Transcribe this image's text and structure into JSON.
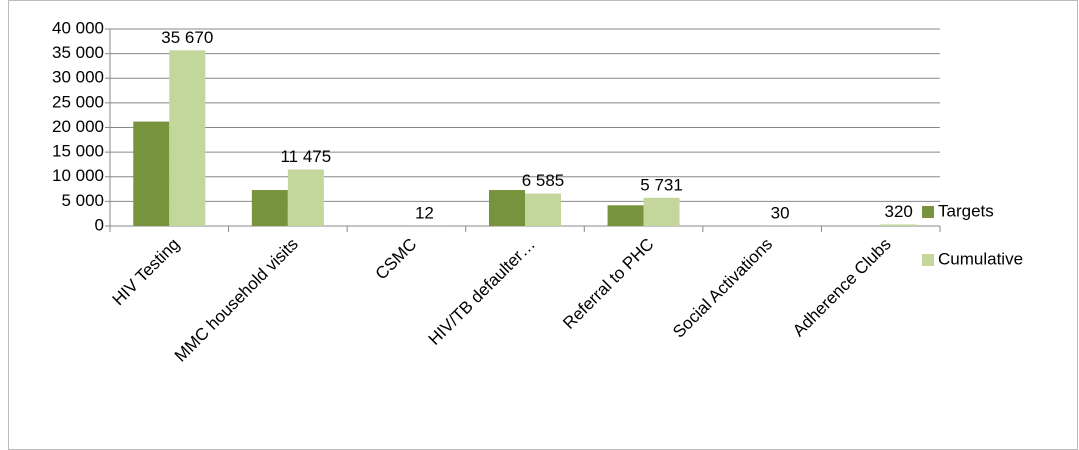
{
  "chart_data": {
    "type": "bar",
    "categories": [
      "HIV Testing",
      "MMC household visits",
      "CSMC",
      "HIV/TB defaulter…",
      "Referral to PHC",
      "Social Activations",
      "Adherence Clubs"
    ],
    "series": [
      {
        "name": "Targets",
        "color": "#77933c",
        "values": [
          21200,
          7300,
          0,
          7300,
          4200,
          0,
          0
        ]
      },
      {
        "name": "Cumulative",
        "color": "#c3d69b",
        "values": [
          35670,
          11475,
          12,
          6585,
          5731,
          30,
          320
        ],
        "value_labels": [
          "35 670",
          "11 475",
          "12",
          "6 585",
          "5 731",
          "30",
          "320"
        ]
      }
    ],
    "ylim": [
      0,
      40000
    ],
    "yticks": [
      0,
      {
        "value": 5000,
        "label": "5 000"
      },
      {
        "value": 10000,
        "label": "10 000"
      },
      {
        "value": 15000,
        "label": "15 000"
      },
      {
        "value": 20000,
        "label": "20 000"
      },
      {
        "value": 25000,
        "label": "25 000"
      },
      {
        "value": 30000,
        "label": "30 000"
      },
      {
        "value": 35000,
        "label": "35 000"
      },
      {
        "value": 40000,
        "label": "40 000"
      }
    ],
    "grid": true,
    "legend": "right"
  }
}
